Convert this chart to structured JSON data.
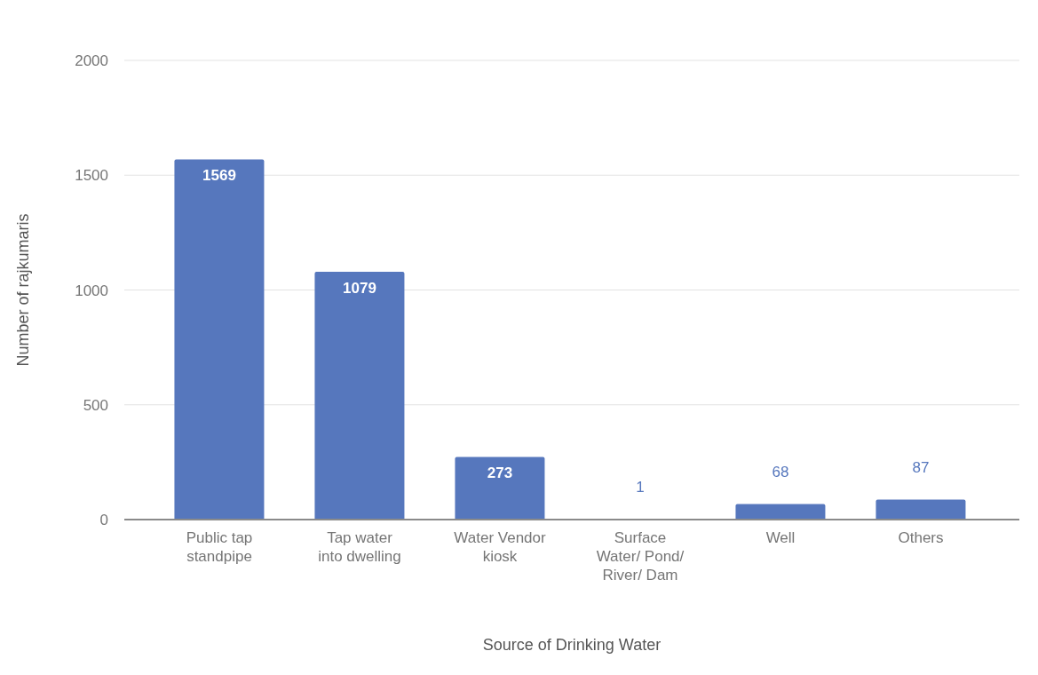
{
  "chart_data": {
    "type": "bar",
    "xlabel": "Source of Drinking Water",
    "ylabel": "Number of rajkumaris",
    "categories": [
      "Public tap standpipe",
      "Tap water into dwelling",
      "Water Vendor kiosk",
      "Surface Water/ Pond/ River/ Dam",
      "Well",
      "Others"
    ],
    "values": [
      1569,
      1079,
      273,
      1,
      68,
      87
    ],
    "color": "#5677bd",
    "ylim": [
      0,
      2000
    ],
    "yticks": [
      0,
      500,
      1000,
      1500,
      2000
    ],
    "grid": "y",
    "data_labels": true
  }
}
